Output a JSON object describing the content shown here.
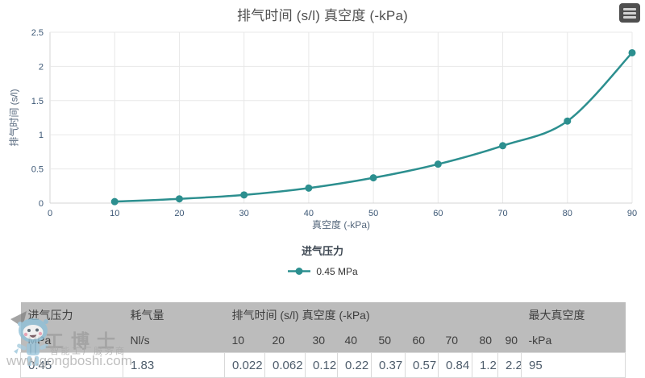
{
  "chart": {
    "title": "排气时间 (s/l) 真空度 (-kPa)",
    "menu_icon": "hamburger-menu-icon",
    "x_axis": {
      "title": "真空度 (-kPa)"
    },
    "y_axis": {
      "title": "排气时间 (s/l)"
    },
    "legend": {
      "title": "进气压力",
      "items": [
        {
          "label": "0.45 MPa",
          "color": "#2c8f8f"
        }
      ]
    },
    "colors": {
      "series": "#2c8f8f",
      "grid": "#e8e8e8",
      "axis_line": "#d4d4d4",
      "tick_label": "#3d5876",
      "axis_title": "#55677c",
      "title_text": "#4f4f4f",
      "table_header_bg": "#bcbcbc"
    }
  },
  "chart_data": {
    "type": "line",
    "title": "排气时间 (s/l) 真空度 (-kPa)",
    "x": [
      10,
      20,
      30,
      40,
      50,
      60,
      70,
      80,
      90
    ],
    "series": [
      {
        "name": "0.45 MPa",
        "color": "#2c8f8f",
        "values": [
          0.022,
          0.062,
          0.12,
          0.22,
          0.37,
          0.57,
          0.84,
          1.2,
          2.2
        ]
      }
    ],
    "xlabel": "真空度 (-kPa)",
    "ylabel": "排气时间 (s/l)",
    "xlim": [
      0,
      90
    ],
    "ylim": [
      0,
      2.5
    ],
    "x_ticks": [
      0,
      10,
      20,
      30,
      40,
      50,
      60,
      70,
      80,
      90
    ],
    "y_ticks": [
      0,
      0.5,
      1,
      1.5,
      2,
      2.5
    ],
    "grid": true,
    "legend_position": "bottom",
    "legend_title": "进气压力",
    "marker": "circle"
  },
  "table": {
    "header_groups": [
      {
        "label": "进气压力",
        "colspan": 1
      },
      {
        "label": "耗气量",
        "colspan": 1
      },
      {
        "label": "排气时间 (s/l) 真空度 (-kPa)",
        "colspan": 9
      },
      {
        "label": "最大真空度",
        "colspan": 1
      }
    ],
    "header_units": [
      "MPa",
      "Nl/s",
      "10",
      "20",
      "30",
      "40",
      "50",
      "60",
      "70",
      "80",
      "90",
      "-kPa"
    ],
    "rows": [
      [
        "0.45",
        "1.83",
        "0.022",
        "0.062",
        "0.12",
        "0.22",
        "0.37",
        "0.57",
        "0.84",
        "1.2",
        "2.2",
        "95"
      ]
    ]
  },
  "watermark": {
    "brand": "工博士",
    "tagline": "智能工厂服务商",
    "url": "www.gongboshi.com",
    "mascot_icon": "robot-mascot-icon"
  }
}
